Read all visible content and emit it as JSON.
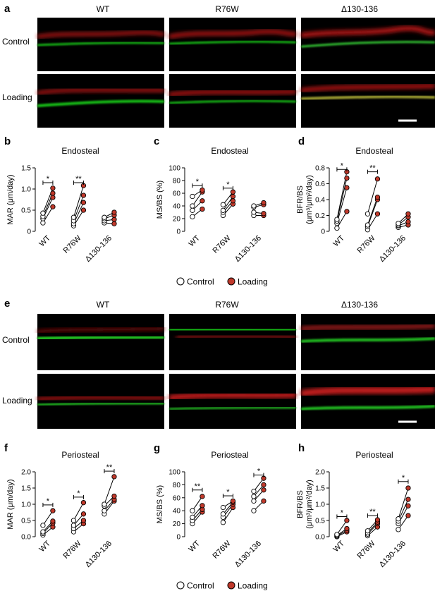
{
  "panel_letters": [
    "a",
    "b",
    "c",
    "d",
    "e",
    "f",
    "g",
    "h"
  ],
  "micrograph_columns": [
    "WT",
    "R76W",
    "Δ130-136"
  ],
  "micrograph_rows": [
    "Control",
    "Loading"
  ],
  "legend": {
    "control": "Control",
    "loading": "Loading"
  },
  "colors": {
    "control_fill": "#ffffff",
    "loading_fill": "#c0392b",
    "marker_stroke": "#000000",
    "green_label": "#19d419",
    "red_label": "#d61a1a"
  },
  "chart_data": [
    {
      "panel": "b",
      "type": "scatter",
      "title": "Endosteal",
      "ylabel": "MAR (μm/day)",
      "categories": [
        "WT",
        "R76W",
        "Δ130-136"
      ],
      "ylim": [
        0,
        1.5
      ],
      "yticks": [
        0,
        0.5,
        1.0,
        1.5
      ],
      "yticklabels": [
        "0",
        "0.5",
        "1.0",
        "1.5"
      ],
      "series": [
        {
          "name": "Control",
          "values": [
            [
              0.2,
              0.3,
              0.35,
              0.43
            ],
            [
              0.13,
              0.18,
              0.25,
              0.33
            ],
            [
              0.2,
              0.25,
              0.3,
              0.33
            ]
          ]
        },
        {
          "name": "Loading",
          "values": [
            [
              0.58,
              0.8,
              0.9,
              1.02
            ],
            [
              0.5,
              0.68,
              0.85,
              1.08
            ],
            [
              0.18,
              0.28,
              0.38,
              0.45
            ]
          ]
        }
      ],
      "brackets": [
        {
          "group": 0,
          "label": "*",
          "y": 1.15
        },
        {
          "group": 1,
          "label": "**",
          "y": 1.15
        }
      ]
    },
    {
      "panel": "c",
      "type": "scatter",
      "title": "Endosteal",
      "ylabel": "MS/BS (%)",
      "categories": [
        "WT",
        "R76W",
        "Δ130-136"
      ],
      "ylim": [
        0,
        100
      ],
      "yticks": [
        0,
        20,
        40,
        60,
        80,
        100
      ],
      "yticklabels": [
        "0",
        "20",
        "40",
        "60",
        "80",
        "100"
      ],
      "series": [
        {
          "name": "Control",
          "values": [
            [
              23,
              33,
              40,
              55
            ],
            [
              25,
              30,
              33,
              42
            ],
            [
              25,
              30,
              38,
              40
            ]
          ]
        },
        {
          "name": "Loading",
          "values": [
            [
              35,
              48,
              62,
              65
            ],
            [
              43,
              48,
              55,
              62
            ],
            [
              25,
              28,
              42,
              45
            ]
          ]
        }
      ],
      "brackets": [
        {
          "group": 0,
          "label": "*",
          "y": 72
        },
        {
          "group": 1,
          "label": "*",
          "y": 68
        }
      ]
    },
    {
      "panel": "d",
      "type": "scatter",
      "title": "Endosteal",
      "ylabel": "BFR/BS (μm³/μm²/day)",
      "categories": [
        "WT",
        "R76W",
        "Δ130-136"
      ],
      "ylim": [
        0,
        0.8
      ],
      "yticks": [
        0,
        0.2,
        0.4,
        0.6,
        0.8
      ],
      "yticklabels": [
        "0",
        "0.2",
        "0.4",
        "0.6",
        "0.8"
      ],
      "series": [
        {
          "name": "Control",
          "values": [
            [
              0.04,
              0.1,
              0.13,
              0.15
            ],
            [
              0.02,
              0.06,
              0.08,
              0.22
            ],
            [
              0.05,
              0.07,
              0.08,
              0.1
            ]
          ]
        },
        {
          "name": "Loading",
          "values": [
            [
              0.25,
              0.55,
              0.67,
              0.75
            ],
            [
              0.22,
              0.4,
              0.43,
              0.66
            ],
            [
              0.08,
              0.12,
              0.18,
              0.22
            ]
          ]
        }
      ],
      "brackets": [
        {
          "group": 0,
          "label": "*",
          "y": 0.78
        },
        {
          "group": 1,
          "label": "**",
          "y": 0.75
        }
      ]
    },
    {
      "panel": "f",
      "type": "scatter",
      "title": "Periosteal",
      "ylabel": "MAR (μm/day)",
      "categories": [
        "WT",
        "R76W",
        "Δ130-136"
      ],
      "ylim": [
        0,
        2.0
      ],
      "yticks": [
        0,
        0.5,
        1.0,
        1.5,
        2.0
      ],
      "yticklabels": [
        "0.0",
        "0.5",
        "1.0",
        "1.5",
        "2.0"
      ],
      "series": [
        {
          "name": "Control",
          "values": [
            [
              0.05,
              0.1,
              0.15,
              0.35
            ],
            [
              0.15,
              0.25,
              0.35,
              0.5
            ],
            [
              0.7,
              0.8,
              0.95,
              1.0
            ]
          ]
        },
        {
          "name": "Loading",
          "values": [
            [
              0.3,
              0.42,
              0.48,
              0.8
            ],
            [
              0.4,
              0.5,
              0.7,
              1.05
            ],
            [
              1.1,
              1.15,
              1.25,
              1.85
            ]
          ]
        }
      ],
      "brackets": [
        {
          "group": 0,
          "label": "*",
          "y": 0.98
        },
        {
          "group": 1,
          "label": "*",
          "y": 1.22
        },
        {
          "group": 2,
          "label": "**",
          "y": 2.02
        }
      ]
    },
    {
      "panel": "g",
      "type": "scatter",
      "title": "Periosteal",
      "ylabel": "MS/BS (%)",
      "categories": [
        "WT",
        "R76W",
        "Δ130-136"
      ],
      "ylim": [
        0,
        100
      ],
      "yticks": [
        0,
        20,
        40,
        60,
        80,
        100
      ],
      "yticklabels": [
        "0",
        "20",
        "40",
        "60",
        "80",
        "100"
      ],
      "series": [
        {
          "name": "Control",
          "values": [
            [
              20,
              25,
              30,
              40
            ],
            [
              22,
              30,
              35,
              45
            ],
            [
              40,
              55,
              62,
              70
            ]
          ]
        },
        {
          "name": "Loading",
          "values": [
            [
              38,
              42,
              48,
              62
            ],
            [
              45,
              50,
              53,
              55
            ],
            [
              55,
              72,
              80,
              90
            ]
          ]
        }
      ],
      "brackets": [
        {
          "group": 0,
          "label": "**",
          "y": 72
        },
        {
          "group": 1,
          "label": "*",
          "y": 63
        },
        {
          "group": 2,
          "label": "*",
          "y": 95
        }
      ]
    },
    {
      "panel": "h",
      "type": "scatter",
      "title": "Periosteal",
      "ylabel": "BFR/BS (μm³/μm²/day)",
      "categories": [
        "WT",
        "R76W",
        "Δ130-136"
      ],
      "ylim": [
        0,
        2.0
      ],
      "yticks": [
        0,
        0.5,
        1.0,
        1.5,
        2.0
      ],
      "yticklabels": [
        "0.0",
        "0.5",
        "1.0",
        "1.5",
        "2.0"
      ],
      "series": [
        {
          "name": "Control",
          "values": [
            [
              0.0,
              0.02,
              0.04,
              0.07
            ],
            [
              0.03,
              0.08,
              0.12,
              0.18
            ],
            [
              0.22,
              0.4,
              0.48,
              0.55
            ]
          ]
        },
        {
          "name": "Loading",
          "values": [
            [
              0.15,
              0.2,
              0.25,
              0.5
            ],
            [
              0.3,
              0.4,
              0.45,
              0.52
            ],
            [
              0.65,
              0.95,
              1.15,
              1.5
            ]
          ]
        }
      ],
      "brackets": [
        {
          "group": 0,
          "label": "*",
          "y": 0.62
        },
        {
          "group": 1,
          "label": "**",
          "y": 0.65
        },
        {
          "group": 2,
          "label": "*",
          "y": 1.7
        }
      ]
    }
  ]
}
